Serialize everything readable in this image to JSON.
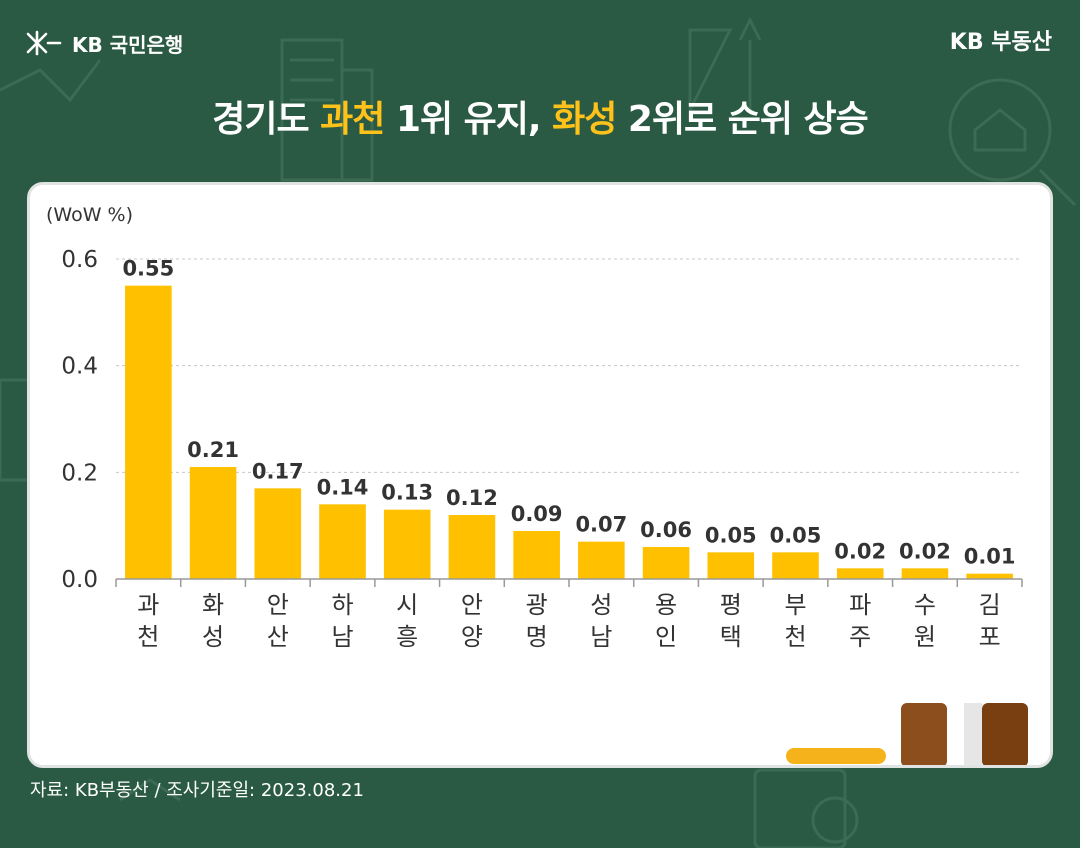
{
  "header": {
    "bank_name": "KB 국민은행",
    "brand_right": "KB 부동산"
  },
  "title": {
    "part1": "경기도 ",
    "highlight1": "과천",
    "part2": " 1위 유지, ",
    "highlight2": "화성",
    "part3": " 2위로 순위 상승"
  },
  "chart_data": {
    "type": "bar",
    "unit_label": "(WoW %)",
    "categories": [
      "과천",
      "화성",
      "안산",
      "하남",
      "시흥",
      "안양",
      "광명",
      "성남",
      "용인",
      "평택",
      "부천",
      "파주",
      "수원",
      "김포"
    ],
    "values": [
      0.55,
      0.21,
      0.17,
      0.14,
      0.13,
      0.12,
      0.09,
      0.07,
      0.06,
      0.05,
      0.05,
      0.02,
      0.02,
      0.01
    ],
    "value_labels": [
      "0.55",
      "0.21",
      "0.17",
      "0.14",
      "0.13",
      "0.12",
      "0.09",
      "0.07",
      "0.06",
      "0.05",
      "0.05",
      "0.02",
      "0.02",
      "0.01"
    ],
    "yticks": [
      "0.0",
      "0.2",
      "0.4",
      "0.6"
    ],
    "ylim": [
      0,
      0.6
    ],
    "grid": true,
    "bar_color": "#ffc000"
  },
  "footer": {
    "source": "자료: KB부동산 / 조사기준일: 2023.08.21"
  }
}
